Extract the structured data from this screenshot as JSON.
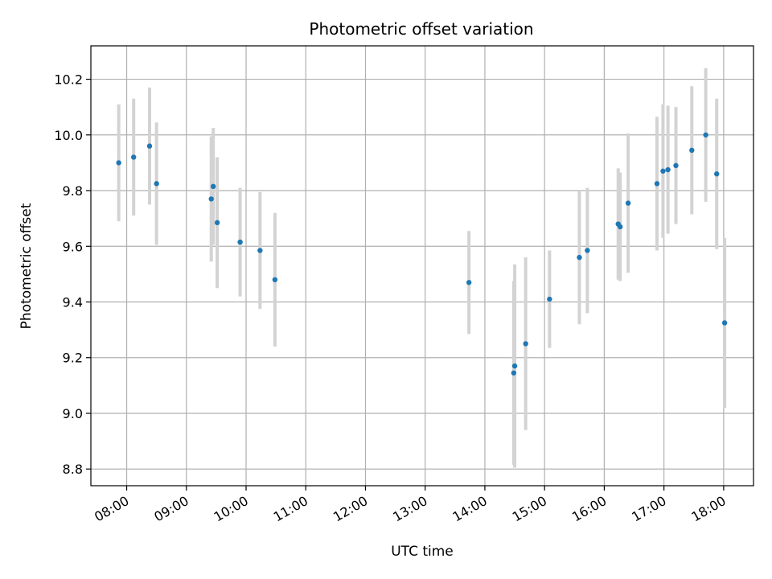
{
  "chart_data": {
    "type": "scatter",
    "title": "Photometric offset variation",
    "xlabel": "UTC time",
    "ylabel": "Photometric offset",
    "x_ticks": [
      "08:00",
      "09:00",
      "10:00",
      "11:00",
      "12:00",
      "13:00",
      "14:00",
      "15:00",
      "16:00",
      "17:00",
      "18:00"
    ],
    "y_ticks": [
      "8.8",
      "9.0",
      "9.2",
      "9.4",
      "9.6",
      "9.8",
      "10.0",
      "10.2"
    ],
    "xlim": [
      "07:24",
      "18:30"
    ],
    "ylim": [
      8.74,
      10.32
    ],
    "grid": true,
    "colors": {
      "point": "#1f77b4",
      "errorbar": "#d3d3d3",
      "grid": "#b0b0b0"
    },
    "points": [
      {
        "x": "07:52",
        "y": 9.9,
        "err": 0.21
      },
      {
        "x": "08:07",
        "y": 9.92,
        "err": 0.21
      },
      {
        "x": "08:23",
        "y": 9.96,
        "err": 0.21
      },
      {
        "x": "08:30",
        "y": 9.825,
        "err": 0.22
      },
      {
        "x": "09:25",
        "y": 9.77,
        "err": 0.225
      },
      {
        "x": "09:27",
        "y": 9.815,
        "err": 0.21
      },
      {
        "x": "09:31",
        "y": 9.685,
        "err": 0.235
      },
      {
        "x": "09:54",
        "y": 9.615,
        "err": 0.195
      },
      {
        "x": "10:14",
        "y": 9.585,
        "err": 0.21
      },
      {
        "x": "10:29",
        "y": 9.48,
        "err": 0.24
      },
      {
        "x": "13:44",
        "y": 9.47,
        "err": 0.185
      },
      {
        "x": "14:29",
        "y": 9.145,
        "err": 0.33
      },
      {
        "x": "14:30",
        "y": 9.17,
        "err": 0.365
      },
      {
        "x": "14:41",
        "y": 9.25,
        "err": 0.31
      },
      {
        "x": "15:05",
        "y": 9.41,
        "err": 0.175
      },
      {
        "x": "15:35",
        "y": 9.56,
        "err": 0.24
      },
      {
        "x": "15:43",
        "y": 9.585,
        "err": 0.225
      },
      {
        "x": "16:14",
        "y": 9.68,
        "err": 0.2
      },
      {
        "x": "16:16",
        "y": 9.67,
        "err": 0.195
      },
      {
        "x": "16:24",
        "y": 9.755,
        "err": 0.25
      },
      {
        "x": "16:53",
        "y": 9.825,
        "err": 0.24
      },
      {
        "x": "16:59",
        "y": 9.87,
        "err": 0.24
      },
      {
        "x": "17:04",
        "y": 9.875,
        "err": 0.23
      },
      {
        "x": "17:12",
        "y": 9.89,
        "err": 0.21
      },
      {
        "x": "17:28",
        "y": 9.945,
        "err": 0.23
      },
      {
        "x": "17:42",
        "y": 10.0,
        "err": 0.24
      },
      {
        "x": "17:53",
        "y": 9.86,
        "err": 0.27
      },
      {
        "x": "18:01",
        "y": 9.325,
        "err": 0.305
      }
    ]
  }
}
